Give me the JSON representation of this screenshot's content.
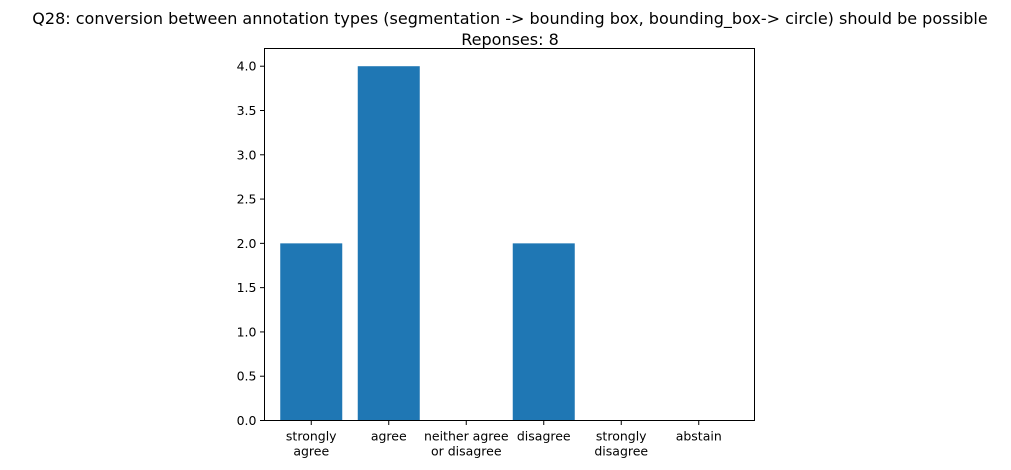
{
  "chart_data": {
    "type": "bar",
    "title": "Q28: conversion between annotation types (segmentation -> bounding box, bounding_box-> circle) should be possible",
    "subtitle": "Reponses: 8",
    "xlabel": "",
    "ylabel": "",
    "categories": [
      [
        "strongly",
        "agree"
      ],
      [
        "agree"
      ],
      [
        "neither agree",
        "or disagree"
      ],
      [
        "disagree"
      ],
      [
        "strongly",
        "disagree"
      ],
      [
        "abstain"
      ]
    ],
    "values": [
      2,
      4,
      0,
      2,
      0,
      0
    ],
    "ylim": [
      0,
      4.2
    ],
    "yticks": [
      "0.0",
      "0.5",
      "1.0",
      "1.5",
      "2.0",
      "2.5",
      "3.0",
      "3.5",
      "4.0"
    ],
    "bar_color": "#1f77b4",
    "grid": false,
    "legend": "none"
  }
}
